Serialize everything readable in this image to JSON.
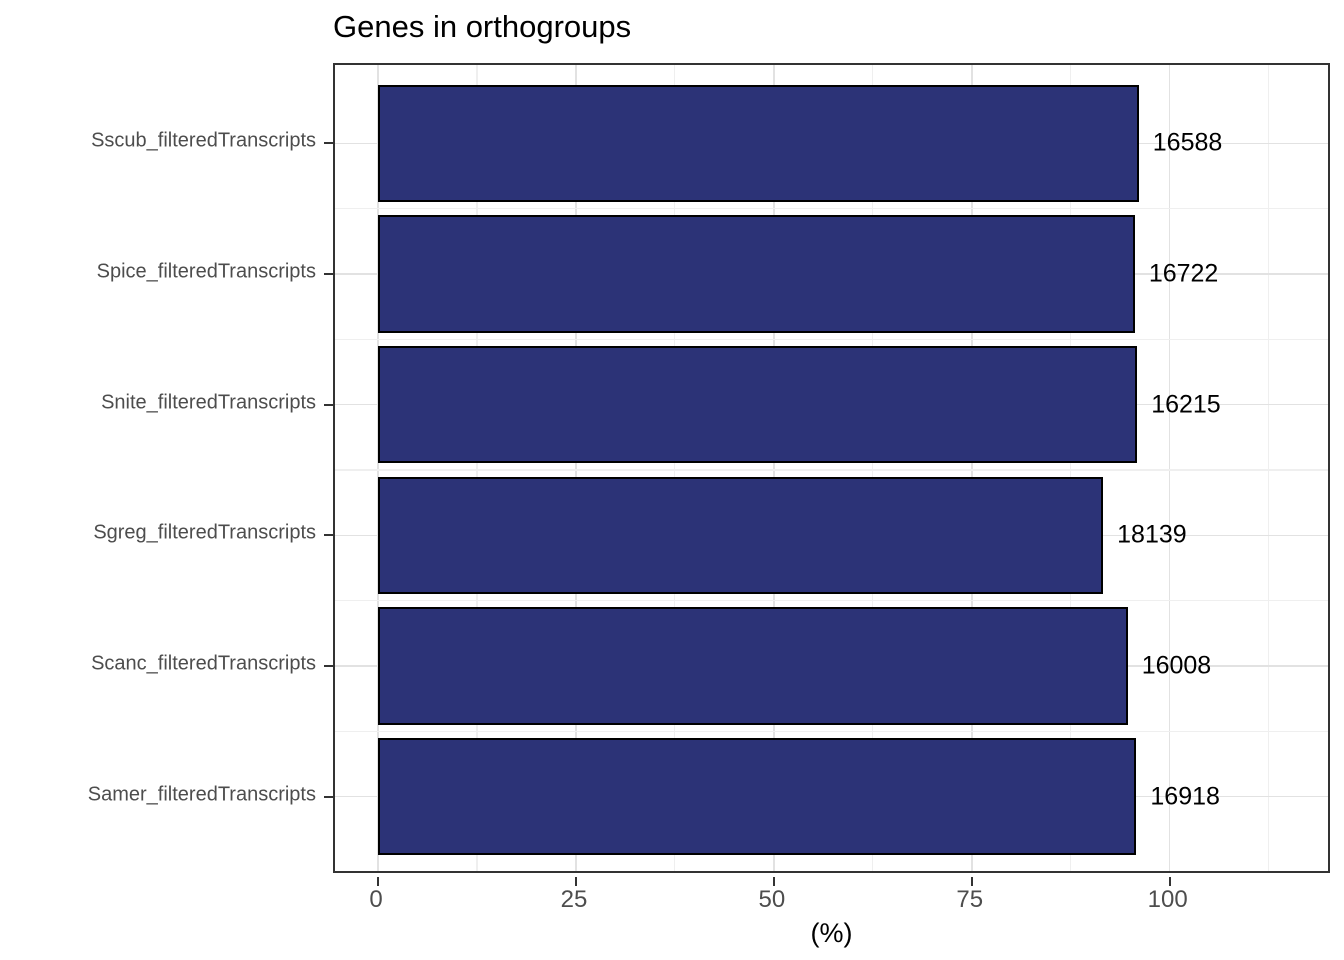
{
  "chart_data": {
    "type": "bar",
    "orientation": "horizontal",
    "title": "Genes in orthogroups",
    "xlabel": "(%)",
    "ylabel": "",
    "categories": [
      "Sscub_filteredTranscripts",
      "Spice_filteredTranscripts",
      "Snite_filteredTranscripts",
      "Sgreg_filteredTranscripts",
      "Scanc_filteredTranscripts",
      "Samer_filteredTranscripts"
    ],
    "values_percent": [
      96.1,
      95.6,
      95.9,
      91.6,
      94.7,
      95.8
    ],
    "bar_labels": [
      "16588",
      "16722",
      "16215",
      "18139",
      "16008",
      "16918"
    ],
    "x_ticks": [
      0,
      25,
      50,
      75,
      100
    ],
    "x_minor_ticks": [
      12.5,
      37.5,
      62.5,
      87.5,
      112.5
    ],
    "x_domain": [
      -5.44,
      120.51
    ],
    "bar_width_fraction": 0.9,
    "grid": true,
    "legend": false,
    "colors": {
      "bar_fill": "#2C3377",
      "bar_stroke": "#000000",
      "panel_border": "#333333",
      "grid_major": "#E2E2E2",
      "grid_minor": "#EFEFEF",
      "axis_text": "#4D4D4D",
      "title_text": "#000000",
      "value_label_text": "#000000",
      "tick_mark": "#333333",
      "background": "#FFFFFF"
    }
  }
}
